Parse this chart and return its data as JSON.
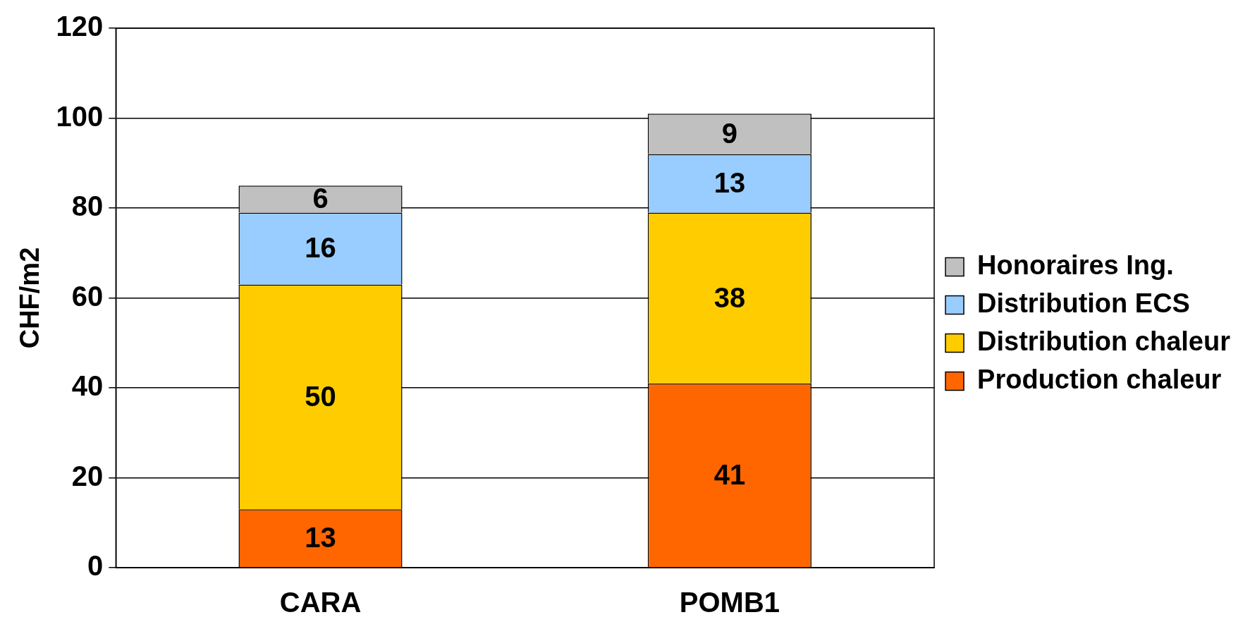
{
  "chart_data": {
    "type": "bar",
    "stacked": true,
    "categories": [
      "CARA",
      "POMB1"
    ],
    "ylabel": "CHF/m2",
    "ylim": [
      0,
      120
    ],
    "yticks": [
      0,
      20,
      40,
      60,
      80,
      100,
      120
    ],
    "grid": "y",
    "legend": "right",
    "data_labels": true,
    "series": [
      {
        "name": "Production chaleur",
        "color": "#ff6600",
        "values": [
          13,
          41
        ]
      },
      {
        "name": "Distribution chaleur",
        "color": "#ffcc00",
        "values": [
          50,
          38
        ]
      },
      {
        "name": "Distribution ECS",
        "color": "#99ccff",
        "values": [
          16,
          13
        ]
      },
      {
        "name": "Honoraires Ing.",
        "color": "#c0c0c0",
        "values": [
          6,
          9
        ]
      }
    ]
  }
}
